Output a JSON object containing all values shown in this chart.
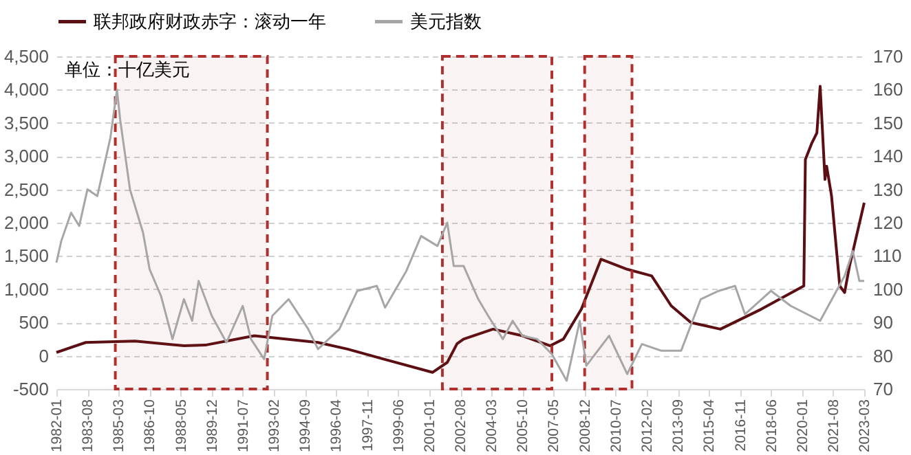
{
  "chart_data": {
    "type": "line",
    "legend": "top",
    "grid": "y",
    "annotations": [
      "单位：十亿美元"
    ],
    "xlim": [
      "1982-01",
      "2023-03"
    ],
    "xticks": [
      "1982-01",
      "1983-08",
      "1985-03",
      "1986-10",
      "1988-05",
      "1989-12",
      "1991-07",
      "1993-02",
      "1994-09",
      "1996-04",
      "1997-11",
      "1999-06",
      "2001-01",
      "2002-08",
      "2004-03",
      "2005-10",
      "2007-05",
      "2008-12",
      "2010-07",
      "2012-02",
      "2013-09",
      "2015-04",
      "2016-11",
      "2018-06",
      "2020-01",
      "2021-08",
      "2023-03"
    ],
    "ylim": [
      -500,
      4500
    ],
    "yticks": [
      -500,
      0,
      500,
      {
        "value": 1000,
        "label": "1,000"
      },
      {
        "value": 1500,
        "label": "1,500"
      },
      {
        "value": 2000,
        "label": "2,000"
      },
      {
        "value": 2500,
        "label": "2,500"
      },
      {
        "value": 3000,
        "label": "3,000"
      },
      {
        "value": 3500,
        "label": "3,500"
      },
      {
        "value": 4000,
        "label": "4,000"
      },
      {
        "value": 4500,
        "label": "4,500"
      }
    ],
    "y2lim": [
      70,
      170
    ],
    "y2ticks": [
      70,
      80,
      90,
      100,
      110,
      120,
      130,
      140,
      150,
      160,
      170
    ],
    "bands": [
      {
        "axis": "x",
        "from": "1985-01",
        "to": "1992-10",
        "color": "#b03030"
      },
      {
        "axis": "x",
        "from": "2001-09",
        "to": "2007-04",
        "color": "#b03030"
      },
      {
        "axis": "x",
        "from": "2008-12",
        "to": "2011-05",
        "color": "#b03030"
      }
    ],
    "series": [
      {
        "name": "联邦政府财政赤字：滚动一年",
        "color": "#5c0f12",
        "x": [
          "1982-01",
          "1983-07",
          "1986-01",
          "1988-07",
          "1989-08",
          "1992-02",
          "1995-05",
          "1996-11",
          "1998-09",
          "2001-03",
          "2001-12",
          "2002-06",
          "2002-10",
          "2004-04",
          "2005-10",
          "2007-03",
          "2007-11",
          "2008-10",
          "2009-10",
          "2011-02",
          "2012-05",
          "2013-05",
          "2014-05",
          "2015-11",
          "2017-12",
          "2020-02",
          "2020-03",
          "2020-07",
          "2020-10",
          "2020-12",
          "2021-03",
          "2021-04",
          "2021-07",
          "2021-12",
          "2022-03",
          "2022-06",
          "2023-03"
        ],
        "values": [
          50,
          200,
          220,
          150,
          160,
          300,
          200,
          100,
          -50,
          -250,
          -100,
          180,
          250,
          400,
          300,
          150,
          250,
          700,
          1450,
          1300,
          1200,
          750,
          500,
          400,
          700,
          1050,
          2950,
          3200,
          3350,
          4050,
          2650,
          2850,
          2400,
          1050,
          950,
          1350,
          2300
        ]
      },
      {
        "name": "美元指数",
        "color": "#a6a6a6",
        "axis": "y2",
        "x": [
          "1982-01",
          "1982-04",
          "1982-10",
          "1983-03",
          "1983-08",
          "1984-02",
          "1984-10",
          "1985-02",
          "1985-04",
          "1985-10",
          "1986-06",
          "1986-10",
          "1987-05",
          "1987-12",
          "1988-07",
          "1988-12",
          "1989-04",
          "1989-12",
          "1990-09",
          "1991-07",
          "1991-12",
          "1992-08",
          "1993-01",
          "1993-11",
          "1994-11",
          "1995-05",
          "1996-06",
          "1997-05",
          "1998-05",
          "1998-10",
          "1999-11",
          "2000-08",
          "2001-06",
          "2001-12",
          "2002-04",
          "2002-10",
          "2003-07",
          "2004-01",
          "2004-10",
          "2005-04",
          "2005-10",
          "2006-07",
          "2007-04",
          "2008-01",
          "2008-09",
          "2009-01",
          "2010-03",
          "2011-02",
          "2011-11",
          "2012-11",
          "2013-11",
          "2014-11",
          "2015-10",
          "2016-08",
          "2017-02",
          "2018-06",
          "2019-06",
          "2020-12",
          "2022-03",
          "2022-08",
          "2022-12",
          "2023-03"
        ],
        "values": [
          108,
          114.5,
          123,
          119,
          130,
          128,
          145.5,
          160,
          151,
          130,
          117,
          106,
          98,
          85,
          97,
          90.5,
          102.5,
          92,
          84,
          95,
          85,
          79,
          92,
          97,
          88,
          82,
          88,
          99.5,
          101,
          94.5,
          105.5,
          116,
          113,
          120,
          107,
          107,
          97,
          92,
          85,
          90.5,
          86,
          85,
          80.5,
          72.5,
          90.5,
          77,
          86,
          74.5,
          83.5,
          81.5,
          81.5,
          97,
          99.5,
          101,
          92.5,
          99.5,
          95,
          90.5,
          104,
          111.5,
          102.5,
          102.5
        ]
      }
    ]
  }
}
